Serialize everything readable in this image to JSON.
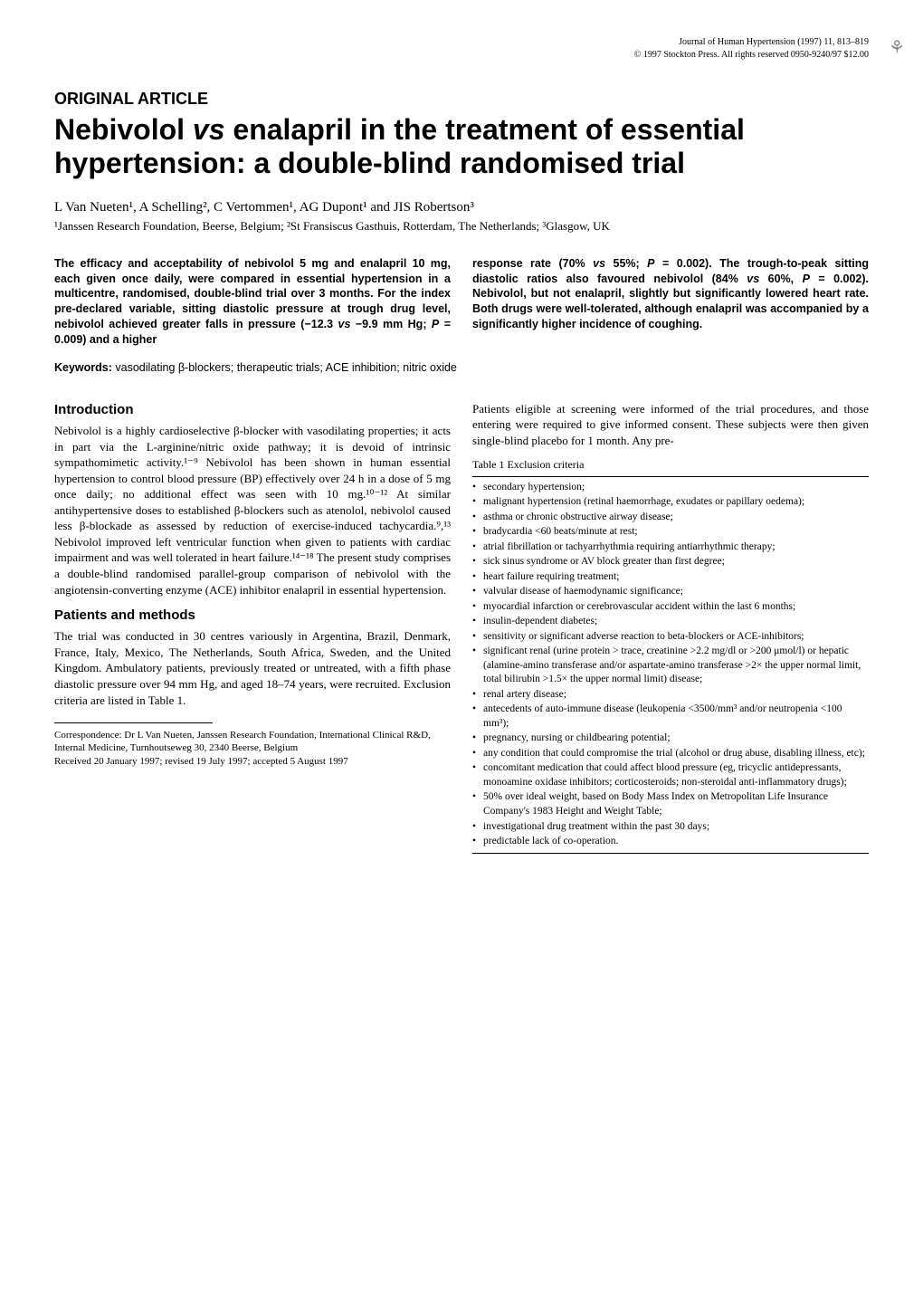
{
  "journal": {
    "name": "Journal of Human Hypertension (1997) 11, 813–819",
    "copyright": "© 1997 Stockton Press. All rights reserved 0950-9240/97 $12.00"
  },
  "article_type": "ORIGINAL ARTICLE",
  "title": "Nebivolol vs enalapril in the treatment of essential hypertension: a double-blind randomised trial",
  "authors": "L Van Nueten¹, A Schelling², C Vertommen¹, AG Dupont¹ and JIS Robertson³",
  "affiliations": "¹Janssen Research Foundation, Beerse, Belgium; ²St Fransiscus Gasthuis, Rotterdam, The Netherlands; ³Glasgow, UK",
  "abstract": {
    "left": "The efficacy and acceptability of nebivolol 5 mg and enalapril 10 mg, each given once daily, were compared in essential hypertension in a multicentre, randomised, double-blind trial over 3 months. For the index pre-declared variable, sitting diastolic pressure at trough drug level, nebivolol achieved greater falls in pressure (−12.3 vs −9.9 mm Hg; P = 0.009) and a higher",
    "right": "response rate (70% vs 55%; P = 0.002). The trough-to-peak sitting diastolic ratios also favoured nebivolol (84% vs 60%, P = 0.002). Nebivolol, but not enalapril, slightly but significantly lowered heart rate. Both drugs were well-tolerated, although enalapril was accompanied by a significantly higher incidence of coughing."
  },
  "keywords_label": "Keywords:",
  "keywords_text": " vasodilating β-blockers; therapeutic trials; ACE inhibition; nitric oxide",
  "sections": {
    "introduction_heading": "Introduction",
    "introduction_body": "Nebivolol is a highly cardioselective β-blocker with vasodilating properties; it acts in part via the L-arginine/nitric oxide pathway; it is devoid of intrinsic sympathomimetic activity.¹⁻⁹ Nebivolol has been shown in human essential hypertension to control blood pressure (BP) effectively over 24 h in a dose of 5 mg once daily; no additional effect was seen with 10 mg.¹⁰⁻¹² At similar antihypertensive doses to established β-blockers such as atenolol, nebivolol caused less β-blockade as assessed by reduction of exercise-induced tachycardia.⁹,¹³ Nebivolol improved left ventricular function when given to patients with cardiac impairment and was well tolerated in heart failure.¹⁴⁻¹⁸ The present study comprises a double-blind randomised parallel-group comparison of nebivolol with the angiotensin-converting enzyme (ACE) inhibitor enalapril in essential hypertension.",
    "patients_heading": "Patients and methods",
    "patients_body": "The trial was conducted in 30 centres variously in Argentina, Brazil, Denmark, France, Italy, Mexico, The Netherlands, South Africa, Sweden, and the United Kingdom. Ambulatory patients, previously treated or untreated, with a fifth phase diastolic pressure over 94 mm Hg, and aged 18–74 years, were recruited. Exclusion criteria are listed in Table 1.",
    "right_intro": "Patients eligible at screening were informed of the trial procedures, and those entering were required to give informed consent. These subjects were then given single-blind placebo for 1 month. Any pre-"
  },
  "table1": {
    "caption": "Table 1 Exclusion criteria",
    "items": [
      "secondary hypertension;",
      "malignant hypertension (retinal haemorrhage, exudates or papillary oedema);",
      "asthma or chronic obstructive airway disease;",
      "bradycardia <60 beats/minute at rest;",
      "atrial fibrillation or tachyarrhythmia requiring antiarrhythmic therapy;",
      "sick sinus syndrome or AV block greater than first degree;",
      "heart failure requiring treatment;",
      "valvular disease of haemodynamic significance;",
      "myocardial infarction or cerebrovascular accident within the last 6 months;",
      "insulin-dependent diabetes;",
      "sensitivity or significant adverse reaction to beta-blockers or ACE-inhibitors;",
      "significant renal (urine protein > trace, creatinine >2.2 mg/dl or >200 μmol/l) or hepatic (alamine-amino transferase and/or aspartate-amino transferase >2× the upper normal limit, total bilirubin >1.5× the upper normal limit) disease;",
      "renal artery disease;",
      "antecedents of auto-immune disease (leukopenia <3500/mm³ and/or neutropenia <100 mm³);",
      "pregnancy, nursing or childbearing potential;",
      "any condition that could compromise the trial (alcohol or drug abuse, disabling illness, etc);",
      "concomitant medication that could affect blood pressure (eg, tricyclic antidepressants, monoamine oxidase inhibitors; corticosteroids; non-steroidal anti-inflammatory drugs);",
      "50% over ideal weight, based on Body Mass Index on Metropolitan Life Insurance Company's 1983 Height and Weight Table;",
      "investigational drug treatment within the past 30 days;",
      "predictable lack of co-operation."
    ]
  },
  "footnotes": {
    "correspondence": "Correspondence: Dr L Van Nueten, Janssen Research Foundation, International Clinical R&D, Internal Medicine, Turnhoutseweg 30, 2340 Beerse, Belgium",
    "received": "Received 20 January 1997; revised 19 July 1997; accepted 5 August 1997"
  }
}
